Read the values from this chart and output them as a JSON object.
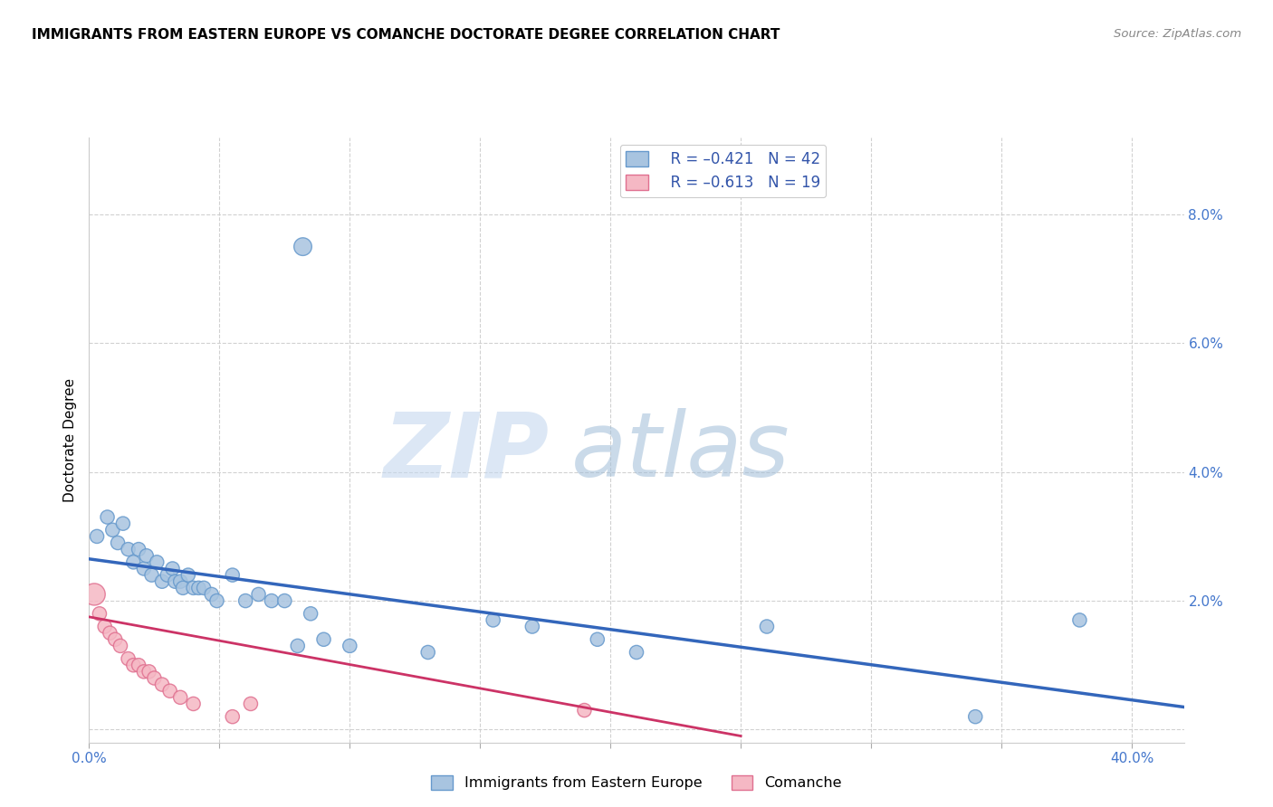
{
  "title": "IMMIGRANTS FROM EASTERN EUROPE VS COMANCHE DOCTORATE DEGREE CORRELATION CHART",
  "source": "Source: ZipAtlas.com",
  "ylabel": "Doctorate Degree",
  "xlim": [
    0.0,
    0.42
  ],
  "ylim": [
    -0.002,
    0.092
  ],
  "xtick_positions": [
    0.0,
    0.05,
    0.1,
    0.15,
    0.2,
    0.25,
    0.3,
    0.35,
    0.4
  ],
  "ytick_positions": [
    0.0,
    0.02,
    0.04,
    0.06,
    0.08
  ],
  "xtick_labels": [
    "0.0%",
    "",
    "",
    "",
    "",
    "",
    "",
    "",
    "40.0%"
  ],
  "ytick_labels": [
    "",
    "2.0%",
    "4.0%",
    "6.0%",
    "8.0%"
  ],
  "legend_blue_r": "R = –0.421",
  "legend_blue_n": "N = 42",
  "legend_pink_r": "R = –0.613",
  "legend_pink_n": "N = 19",
  "blue_color": "#a8c4e0",
  "blue_edge_color": "#6699cc",
  "pink_color": "#f5b8c4",
  "pink_edge_color": "#e07090",
  "blue_line_color": "#3366bb",
  "pink_line_color": "#cc3366",
  "watermark_zip": "ZIP",
  "watermark_atlas": "atlas",
  "blue_points_x": [
    0.003,
    0.007,
    0.009,
    0.011,
    0.013,
    0.015,
    0.017,
    0.019,
    0.021,
    0.022,
    0.024,
    0.026,
    0.028,
    0.03,
    0.032,
    0.033,
    0.035,
    0.036,
    0.038,
    0.04,
    0.042,
    0.044,
    0.047,
    0.049,
    0.055,
    0.06,
    0.065,
    0.07,
    0.075,
    0.08,
    0.085,
    0.09,
    0.1,
    0.13,
    0.155,
    0.17,
    0.195,
    0.21,
    0.26,
    0.34,
    0.38,
    0.082
  ],
  "blue_points_y": [
    0.03,
    0.033,
    0.031,
    0.029,
    0.032,
    0.028,
    0.026,
    0.028,
    0.025,
    0.027,
    0.024,
    0.026,
    0.023,
    0.024,
    0.025,
    0.023,
    0.023,
    0.022,
    0.024,
    0.022,
    0.022,
    0.022,
    0.021,
    0.02,
    0.024,
    0.02,
    0.021,
    0.02,
    0.02,
    0.013,
    0.018,
    0.014,
    0.013,
    0.012,
    0.017,
    0.016,
    0.014,
    0.012,
    0.016,
    0.002,
    0.017,
    0.075
  ],
  "blue_points_size": [
    120,
    120,
    120,
    120,
    120,
    120,
    120,
    120,
    120,
    120,
    120,
    120,
    120,
    120,
    120,
    120,
    120,
    120,
    120,
    120,
    120,
    120,
    120,
    120,
    120,
    120,
    120,
    120,
    120,
    120,
    120,
    120,
    120,
    120,
    120,
    120,
    120,
    120,
    120,
    120,
    120,
    200
  ],
  "pink_points_x": [
    0.002,
    0.004,
    0.006,
    0.008,
    0.01,
    0.012,
    0.015,
    0.017,
    0.019,
    0.021,
    0.023,
    0.025,
    0.028,
    0.031,
    0.035,
    0.04,
    0.055,
    0.062,
    0.19
  ],
  "pink_points_y": [
    0.021,
    0.018,
    0.016,
    0.015,
    0.014,
    0.013,
    0.011,
    0.01,
    0.01,
    0.009,
    0.009,
    0.008,
    0.007,
    0.006,
    0.005,
    0.004,
    0.002,
    0.004,
    0.003
  ],
  "pink_points_size": [
    300,
    120,
    120,
    120,
    120,
    120,
    120,
    120,
    120,
    120,
    120,
    120,
    120,
    120,
    120,
    120,
    120,
    120,
    120
  ],
  "blue_trendline_x": [
    0.0,
    0.42
  ],
  "blue_trendline_y": [
    0.0265,
    0.0035
  ],
  "pink_trendline_x": [
    0.0,
    0.25
  ],
  "pink_trendline_y": [
    0.0175,
    -0.001
  ]
}
